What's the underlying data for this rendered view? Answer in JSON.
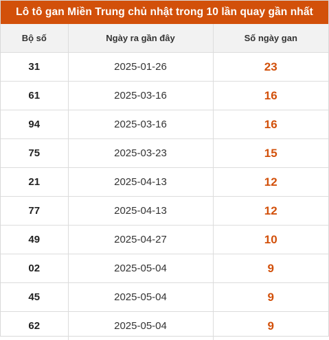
{
  "title": "Lô tô gan Miền Trung chủ nhật trong 10 lần quay gần nhất",
  "colors": {
    "accent": "#d2500a",
    "header_bg": "#f2f2f2",
    "border": "#dcdcdc"
  },
  "table": {
    "headers": [
      "Bộ số",
      "Ngày ra gần đây",
      "Số ngày gan"
    ],
    "rows": [
      {
        "number": "31",
        "date": "2025-01-26",
        "days": "23"
      },
      {
        "number": "61",
        "date": "2025-03-16",
        "days": "16"
      },
      {
        "number": "94",
        "date": "2025-03-16",
        "days": "16"
      },
      {
        "number": "75",
        "date": "2025-03-23",
        "days": "15"
      },
      {
        "number": "21",
        "date": "2025-04-13",
        "days": "12"
      },
      {
        "number": "77",
        "date": "2025-04-13",
        "days": "12"
      },
      {
        "number": "49",
        "date": "2025-04-27",
        "days": "10"
      },
      {
        "number": "02",
        "date": "2025-05-04",
        "days": "9"
      },
      {
        "number": "45",
        "date": "2025-05-04",
        "days": "9"
      },
      {
        "number": "62",
        "date": "2025-05-04",
        "days": "9"
      }
    ]
  }
}
